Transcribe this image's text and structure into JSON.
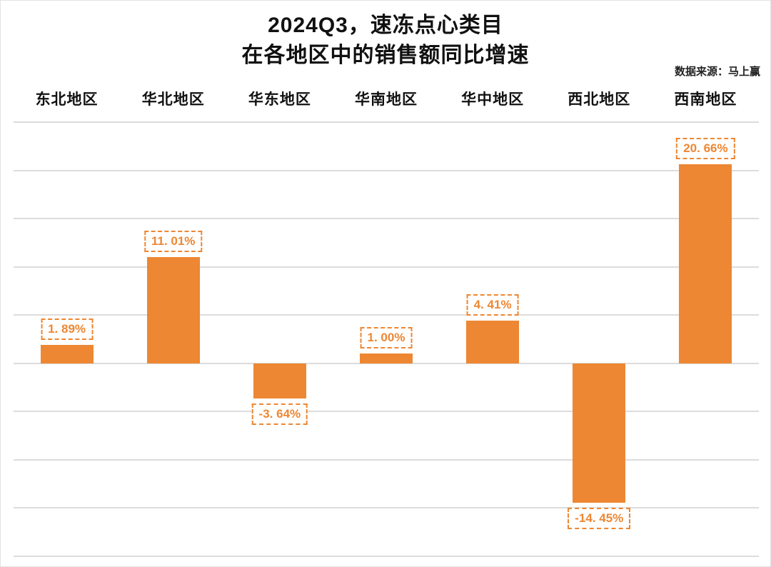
{
  "chart_data": {
    "type": "bar",
    "title_line1": "2024Q3，速冻点心类目",
    "title_line2": "在各地区中的销售额同比增速",
    "source": "数据来源：马上赢",
    "categories": [
      "东北地区",
      "华北地区",
      "华东地区",
      "华南地区",
      "华中地区",
      "西北地区",
      "西南地区"
    ],
    "values": [
      1.89,
      11.01,
      -3.64,
      1.0,
      4.41,
      -14.45,
      20.66
    ],
    "labels": [
      "1. 89%",
      "11. 01%",
      "-3. 64%",
      "1. 00%",
      "4. 41%",
      "-14. 45%",
      "20. 66%"
    ],
    "bar_color": "#ED8733",
    "label_text_color": "#ED8733",
    "label_border_color": "#ED8733",
    "grid_color": "#DCDCDC",
    "ylim": [
      -20,
      25
    ],
    "grid_step": 5,
    "legend": "none",
    "y_axis_tick_labels_visible": false
  }
}
